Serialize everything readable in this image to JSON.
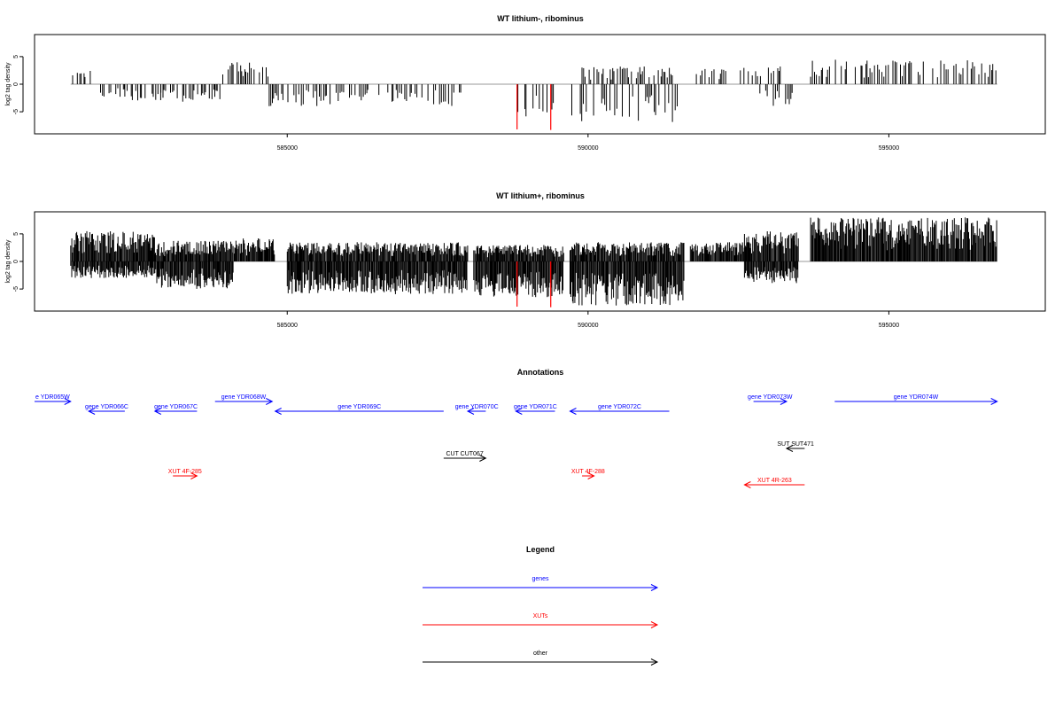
{
  "chart_data": [
    {
      "type": "bar",
      "title": "WT lithium-, ribominus",
      "ylabel": "log2 tag density",
      "xlabel": "",
      "xlim": [
        580800,
        597600
      ],
      "ylim": [
        -9,
        9
      ],
      "xticks": [
        585000,
        590000,
        595000
      ],
      "xtick_labels": [
        "585000",
        "590000",
        "595000"
      ],
      "yticks": [
        -5,
        0,
        5
      ],
      "ytick_labels": [
        "-5",
        "0",
        "5"
      ],
      "grid": false,
      "bar_color": "#000000",
      "highlight_color": "#ff0000",
      "highlights": [
        {
          "x": 588820,
          "value": -8.2
        },
        {
          "x": 589380,
          "value": -8.3
        }
      ],
      "profile": [
        {
          "from": 581400,
          "to": 581800,
          "direction": "pos",
          "max": 3.0
        },
        {
          "from": 581800,
          "to": 582300,
          "direction": "neg",
          "max": 2.5
        },
        {
          "from": 582300,
          "to": 582900,
          "direction": "neg",
          "max": 3.0
        },
        {
          "from": 582900,
          "to": 583400,
          "direction": "neg",
          "max": 3.2
        },
        {
          "from": 583400,
          "to": 583900,
          "direction": "neg",
          "max": 3.0
        },
        {
          "from": 583900,
          "to": 584700,
          "direction": "pos",
          "max": 4.0
        },
        {
          "from": 584700,
          "to": 586200,
          "direction": "neg",
          "max": 4.0
        },
        {
          "from": 586200,
          "to": 587400,
          "direction": "neg",
          "max": 3.2
        },
        {
          "from": 587400,
          "to": 587900,
          "direction": "neg",
          "max": 4.0
        },
        {
          "from": 588800,
          "to": 589500,
          "direction": "neg",
          "max": 6.0
        },
        {
          "from": 589700,
          "to": 591500,
          "direction": "neg",
          "max": 7.0
        },
        {
          "from": 589900,
          "to": 591400,
          "direction": "pos",
          "max": 3.2
        },
        {
          "from": 591800,
          "to": 592300,
          "direction": "pos",
          "max": 3.0
        },
        {
          "from": 592500,
          "to": 593200,
          "direction": "pos",
          "max": 3.6
        },
        {
          "from": 592800,
          "to": 593400,
          "direction": "neg",
          "max": 4.0
        },
        {
          "from": 593700,
          "to": 596800,
          "direction": "pos",
          "max": 4.5
        }
      ]
    },
    {
      "type": "bar",
      "title": "WT lithium+, ribominus",
      "ylabel": "log2 tag density",
      "xlabel": "",
      "xlim": [
        580800,
        597600
      ],
      "ylim": [
        -9,
        9
      ],
      "xticks": [
        585000,
        590000,
        595000
      ],
      "xtick_labels": [
        "585000",
        "590000",
        "595000"
      ],
      "yticks": [
        -5,
        0,
        5
      ],
      "ytick_labels": [
        "-5",
        "0",
        "5"
      ],
      "grid": false,
      "bar_color": "#000000",
      "highlight_color": "#ff0000",
      "highlights": [
        {
          "x": 588820,
          "value": -8.2
        },
        {
          "x": 589380,
          "value": -8.3
        }
      ],
      "profile": [
        {
          "from": 581400,
          "to": 582800,
          "direction": "pos",
          "max": 5.5
        },
        {
          "from": 581400,
          "to": 582800,
          "direction": "neg",
          "max": 3.0
        },
        {
          "from": 582800,
          "to": 584100,
          "direction": "pos",
          "max": 3.8
        },
        {
          "from": 582800,
          "to": 584100,
          "direction": "neg",
          "max": 5.0
        },
        {
          "from": 584100,
          "to": 584800,
          "direction": "pos",
          "max": 4.2
        },
        {
          "from": 585000,
          "to": 588000,
          "direction": "neg",
          "max": 6.0
        },
        {
          "from": 585000,
          "to": 588000,
          "direction": "pos",
          "max": 3.5
        },
        {
          "from": 588100,
          "to": 589600,
          "direction": "neg",
          "max": 6.5
        },
        {
          "from": 588100,
          "to": 589600,
          "direction": "pos",
          "max": 3.0
        },
        {
          "from": 589700,
          "to": 591600,
          "direction": "neg",
          "max": 8.0
        },
        {
          "from": 589700,
          "to": 591600,
          "direction": "pos",
          "max": 3.5
        },
        {
          "from": 591700,
          "to": 592700,
          "direction": "pos",
          "max": 3.5
        },
        {
          "from": 592600,
          "to": 593500,
          "direction": "pos",
          "max": 5.5
        },
        {
          "from": 592600,
          "to": 593500,
          "direction": "neg",
          "max": 4.0
        },
        {
          "from": 593700,
          "to": 596800,
          "direction": "pos",
          "max": 8.0
        }
      ]
    }
  ],
  "annotations": {
    "title": "Annotations",
    "features": [
      {
        "label": "e YDR065W",
        "start": 580800,
        "end": 581400,
        "strand": "+",
        "kind": "gene",
        "row": 0
      },
      {
        "label": "gene YDR066C",
        "start": 581700,
        "end": 582300,
        "strand": "-",
        "kind": "gene",
        "row": 1
      },
      {
        "label": "gene YDR067C",
        "start": 582800,
        "end": 583500,
        "strand": "-",
        "kind": "gene",
        "row": 1
      },
      {
        "label": "gene YDR068W",
        "start": 583800,
        "end": 584750,
        "strand": "+",
        "kind": "gene",
        "row": 0
      },
      {
        "label": "gene YDR069C",
        "start": 584800,
        "end": 587600,
        "strand": "-",
        "kind": "gene",
        "row": 1
      },
      {
        "label": "gene YDR070C",
        "start": 588000,
        "end": 588300,
        "strand": "-",
        "kind": "gene",
        "row": 1
      },
      {
        "label": "gene YDR071C",
        "start": 588800,
        "end": 589450,
        "strand": "-",
        "kind": "gene",
        "row": 1
      },
      {
        "label": "gene YDR072C",
        "start": 589700,
        "end": 591350,
        "strand": "-",
        "kind": "gene",
        "row": 1
      },
      {
        "label": "gene YDR073W",
        "start": 592750,
        "end": 593300,
        "strand": "+",
        "kind": "gene",
        "row": 0
      },
      {
        "label": "gene YDR074W",
        "start": 594100,
        "end": 596800,
        "strand": "+",
        "kind": "gene",
        "row": 0
      },
      {
        "label": "SUT SUT471",
        "start": 593300,
        "end": 593600,
        "strand": "-",
        "kind": "other",
        "row": 2
      },
      {
        "label": "CUT CUT067",
        "start": 587600,
        "end": 588300,
        "strand": "+",
        "kind": "other",
        "row": 3
      },
      {
        "label": "XUT 4F-285",
        "start": 583100,
        "end": 583500,
        "strand": "+",
        "kind": "xut",
        "row": 4
      },
      {
        "label": "XUT 4F-288",
        "start": 589900,
        "end": 590100,
        "strand": "+",
        "kind": "xut",
        "row": 4
      },
      {
        "label": "XUT 4R-263",
        "start": 592600,
        "end": 593600,
        "strand": "-",
        "kind": "xut",
        "row": 5
      }
    ]
  },
  "legend": {
    "title": "Legend",
    "items": [
      {
        "label": "genes",
        "color": "#0000ff"
      },
      {
        "label": "XUTs",
        "color": "#ff0000"
      },
      {
        "label": "other",
        "color": "#000000"
      }
    ]
  },
  "colors": {
    "gene": "#0000ff",
    "xut": "#ff0000",
    "other": "#000000",
    "baseline": "#999999"
  }
}
